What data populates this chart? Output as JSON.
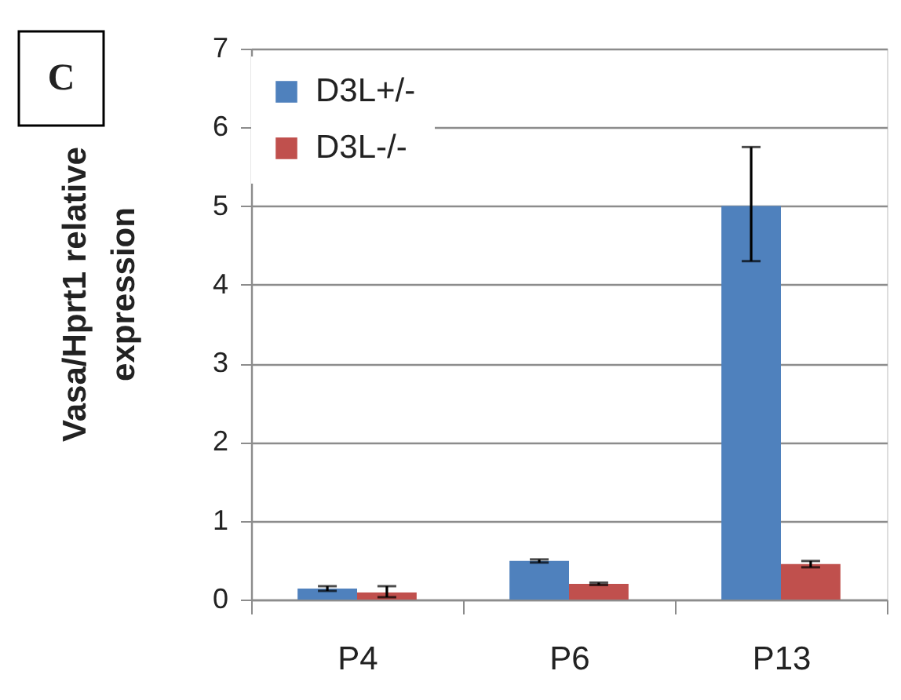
{
  "chart_data": {
    "type": "bar",
    "ylabel": "Vasa/Hprt1 relative expression",
    "categories": [
      "P4",
      "P6",
      "P13"
    ],
    "series": [
      {
        "name": "D3L+/-",
        "color": "#4f81bd",
        "values": [
          0.14,
          0.49,
          5.0
        ],
        "errors": [
          0.03,
          0.02,
          [
            4.3,
            5.75
          ]
        ]
      },
      {
        "name": "D3L-/-",
        "color": "#c0504d",
        "values": [
          0.09,
          0.2,
          0.45
        ],
        "errors": [
          [
            0.03,
            0.17
          ],
          0.015,
          0.04
        ]
      }
    ],
    "ylim": [
      0,
      7
    ],
    "yticks": [
      0,
      1,
      2,
      3,
      4,
      5,
      6,
      7
    ],
    "grid": "y",
    "legend": "top left",
    "annotations": [
      "C"
    ]
  }
}
